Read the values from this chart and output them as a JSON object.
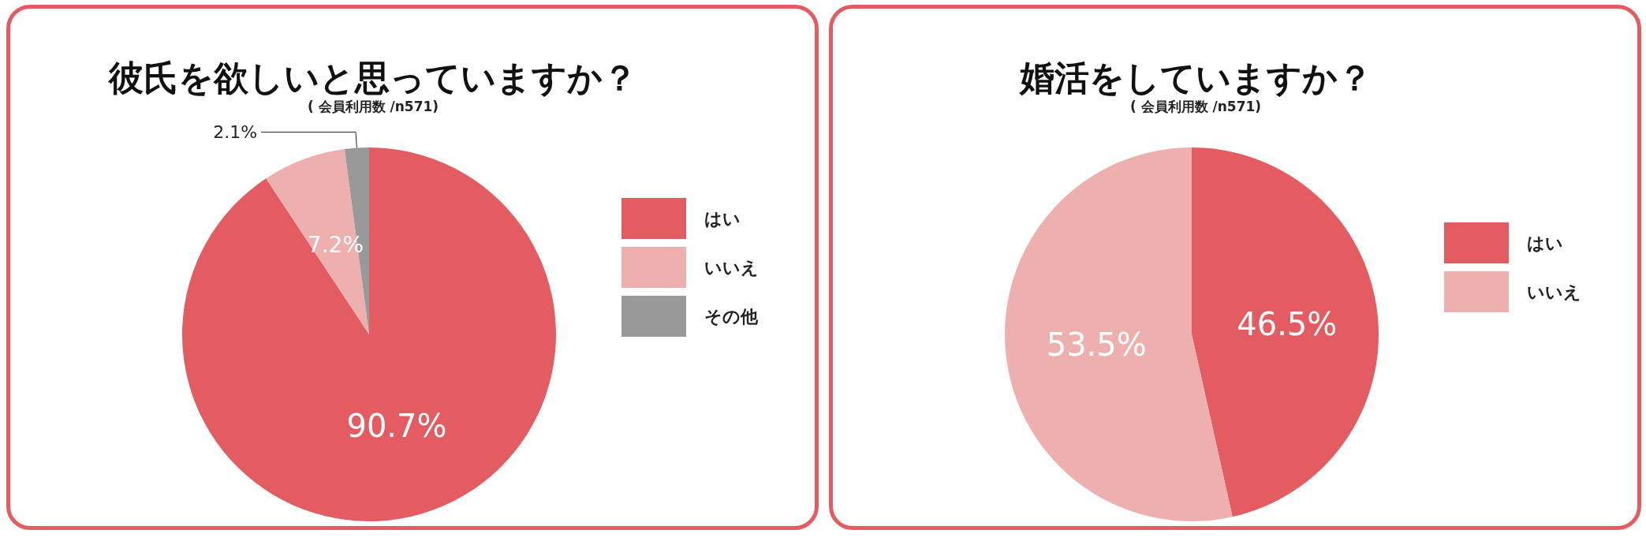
{
  "chart_data": [
    {
      "type": "pie",
      "title": "彼氏を欲しいと思っていますか？",
      "subtitle": "( 会員利用数 /n571)",
      "categories": [
        "はい",
        "いいえ",
        "その他"
      ],
      "values": [
        90.7,
        7.2,
        2.1
      ],
      "colors": [
        "#e35c62",
        "#eeb0ae",
        "#999999"
      ],
      "value_labels": [
        "90.7%",
        "7.2%",
        "2.1%"
      ],
      "legend": "right"
    },
    {
      "type": "pie",
      "title": "婚活をしていますか？",
      "subtitle": "( 会員利用数 /n571)",
      "categories": [
        "はい",
        "いいえ"
      ],
      "values": [
        46.5,
        53.5
      ],
      "colors": [
        "#e35c62",
        "#eeb0ae"
      ],
      "value_labels": [
        "46.5%",
        "53.5%"
      ],
      "legend": "right"
    }
  ]
}
